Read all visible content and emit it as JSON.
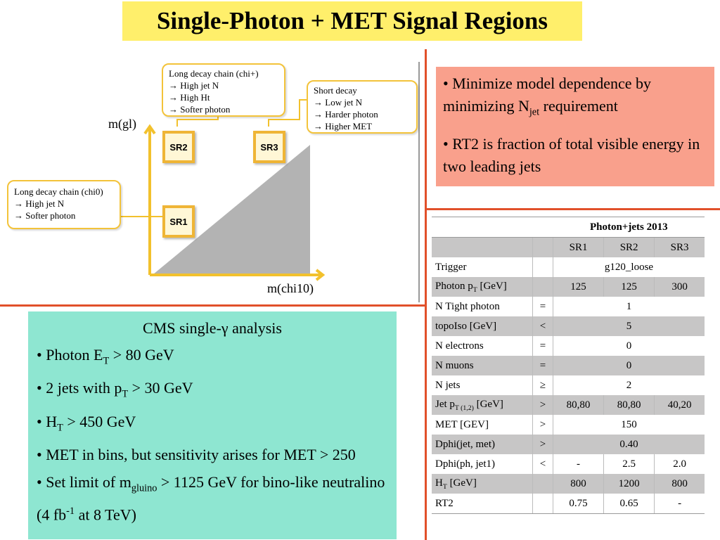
{
  "title": "Single-Photon + MET Signal Regions",
  "diagram": {
    "callout_top": {
      "title": "Long decay chain (chi+)",
      "lines": [
        "→ High jet N",
        "→ High Ht",
        "→ Softer photon"
      ]
    },
    "callout_right": {
      "title": "Short decay",
      "lines": [
        "→ Low jet N",
        "→ Harder photon",
        "→ Higher MET"
      ]
    },
    "callout_left": {
      "title": "Long decay chain (chi0)",
      "lines": [
        "→ High jet N",
        "→ Softer photon"
      ]
    },
    "sr1": "SR1",
    "sr2": "SR2",
    "sr3": "SR3",
    "y_axis": "m(gl)",
    "x_axis": "m(chi10)"
  },
  "right_box": {
    "b1_pre": "• Minimize model dependence by minimizing N",
    "b1_sub": "jet",
    "b1_post": " requirement",
    "b2": "• RT2 is fraction of total visible energy in two leading jets"
  },
  "left_box": {
    "header": "CMS single-γ analysis",
    "b1_pre": "• Photon E",
    "b1_sub": "T",
    "b1_post": " > 80 GeV",
    "b2_pre": "• 2 jets with p",
    "b2_sub": "T",
    "b2_post": " > 30 GeV",
    "b3_pre": "• H",
    "b3_sub": "T",
    "b3_post": " > 450 GeV",
    "b4": "• MET in bins, but sensitivity arises for MET > 250",
    "b5_pre": "• Set limit of m",
    "b5_sub": "gluino",
    "b5_mid": " > 1125 GeV for bino-like neutralino (4 fb",
    "b5_sup": "-1",
    "b5_post": "  at 8 TeV)"
  },
  "table": {
    "caption": "Photon+jets 2013",
    "sr_headers": [
      "SR1",
      "SR2",
      "SR3"
    ],
    "rows": [
      {
        "name": "Trigger",
        "op": "",
        "vals": [
          "g120_loose"
        ]
      },
      {
        "name": "Photon p",
        "name_sub": "T",
        "name_post": " [GeV]",
        "op": "",
        "vals": [
          "125",
          "125",
          "300"
        ]
      },
      {
        "name": "N Tight photon",
        "op": "=",
        "vals": [
          "1"
        ]
      },
      {
        "name": "topoIso    [GeV]",
        "op": "<",
        "vals": [
          "5"
        ]
      },
      {
        "name": "N electrons",
        "op": "=",
        "vals": [
          "0"
        ]
      },
      {
        "name": "N muons",
        "op": "=",
        "vals": [
          "0"
        ]
      },
      {
        "name": "N jets",
        "op": "≥",
        "vals": [
          "2"
        ]
      },
      {
        "name": "Jet p",
        "name_sub": "T (1,2)",
        "name_post": "  [GeV]",
        "op": ">",
        "vals": [
          "80,80",
          "80,80",
          "40,20"
        ]
      },
      {
        "name": "MET [GEV]",
        "op": ">",
        "vals": [
          "150"
        ]
      },
      {
        "name": "Dphi(jet, met)",
        "op": ">",
        "vals": [
          "0.40"
        ]
      },
      {
        "name": "Dphi(ph, jet1)",
        "op": "<",
        "vals": [
          "-",
          "2.5",
          "2.0"
        ]
      },
      {
        "name": "H",
        "name_sub": "T",
        "name_post": "  [GeV]",
        "op": "",
        "vals": [
          "800",
          "1200",
          "800"
        ]
      },
      {
        "name": "RT2",
        "op": "",
        "vals": [
          "0.75",
          "0.65",
          "-"
        ]
      }
    ]
  }
}
